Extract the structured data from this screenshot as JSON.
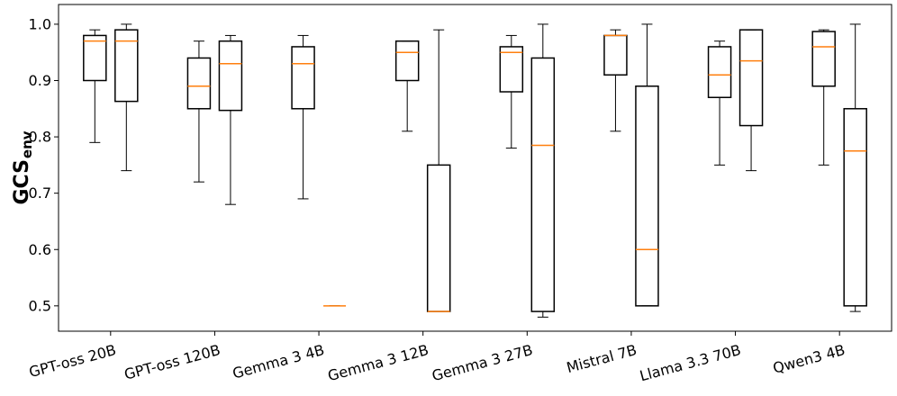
{
  "chart_data": {
    "type": "box",
    "title": "",
    "xlabel": "",
    "ylabel": {
      "main": "GCS",
      "subscript": "env"
    },
    "ylim": [
      0.455,
      1.035
    ],
    "yticks": [
      "0.5",
      "0.6",
      "0.7",
      "0.8",
      "0.9",
      "1.0"
    ],
    "grid": false,
    "legend": "none",
    "colors": {
      "box": "#000000",
      "median": "#ff7f0e",
      "background": "#ffffff"
    },
    "categories": [
      "GPT-oss 20B",
      "GPT-oss 120B",
      "Gemma 3 4B",
      "Gemma 3 12B",
      "Gemma 3 27B",
      "Mistral 7B",
      "Llama 3.3 70B",
      "Qwen3 4B"
    ],
    "series": [
      {
        "boxes": [
          {
            "min": 0.79,
            "q1": 0.9,
            "median": 0.97,
            "q3": 0.98,
            "max": 0.99
          },
          {
            "min": 0.72,
            "q1": 0.85,
            "median": 0.89,
            "q3": 0.94,
            "max": 0.97
          },
          {
            "min": 0.69,
            "q1": 0.85,
            "median": 0.93,
            "q3": 0.96,
            "max": 0.98
          },
          {
            "min": 0.81,
            "q1": 0.9,
            "median": 0.95,
            "q3": 0.97,
            "max": 0.97
          },
          {
            "min": 0.78,
            "q1": 0.88,
            "median": 0.95,
            "q3": 0.96,
            "max": 0.98
          },
          {
            "min": 0.81,
            "q1": 0.91,
            "median": 0.98,
            "q3": 0.98,
            "max": 0.99
          },
          {
            "min": 0.75,
            "q1": 0.87,
            "median": 0.91,
            "q3": 0.96,
            "max": 0.97
          },
          {
            "min": 0.75,
            "q1": 0.89,
            "median": 0.96,
            "q3": 0.987,
            "max": 0.99
          }
        ]
      },
      {
        "boxes": [
          {
            "min": 0.74,
            "q1": 0.863,
            "median": 0.97,
            "q3": 0.99,
            "max": 1.0
          },
          {
            "min": 0.68,
            "q1": 0.847,
            "median": 0.93,
            "q3": 0.97,
            "max": 0.98
          },
          {
            "min": 0.5,
            "q1": 0.5,
            "median": 0.5,
            "q3": 0.5,
            "max": 0.5
          },
          {
            "min": 0.49,
            "q1": 0.49,
            "median": 0.49,
            "q3": 0.75,
            "max": 0.99
          },
          {
            "min": 0.48,
            "q1": 0.49,
            "median": 0.785,
            "q3": 0.94,
            "max": 1.0
          },
          {
            "min": 0.5,
            "q1": 0.5,
            "median": 0.6,
            "q3": 0.89,
            "max": 1.0
          },
          {
            "min": 0.74,
            "q1": 0.82,
            "median": 0.935,
            "q3": 0.99,
            "max": 0.99
          },
          {
            "min": 0.49,
            "q1": 0.5,
            "median": 0.775,
            "q3": 0.85,
            "max": 1.0
          }
        ]
      }
    ]
  }
}
